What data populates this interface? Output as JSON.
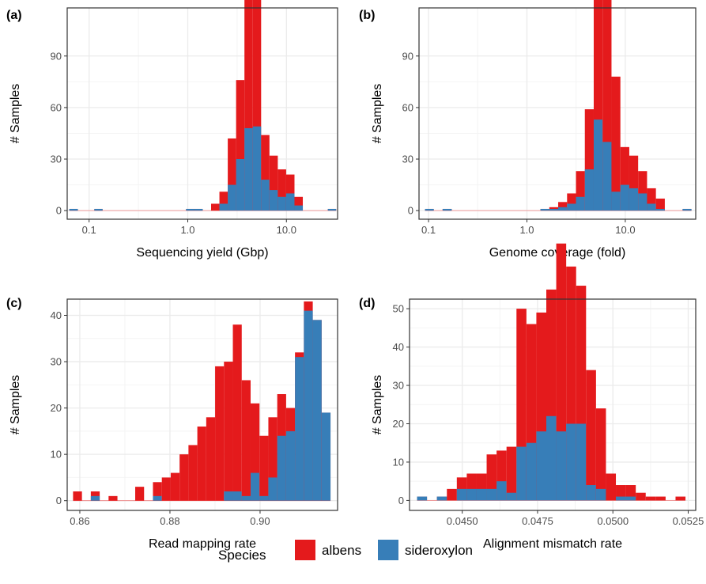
{
  "colors": {
    "albens": "#E41A1C",
    "sideroxylon": "#377EB8",
    "grid_major": "#EBEBEB",
    "grid_minor": "#F4F4F4",
    "zero_line": "#F08080"
  },
  "legend": {
    "title": "Species",
    "items": [
      {
        "name": "albens",
        "color": "#E41A1C"
      },
      {
        "name": "sideroxylon",
        "color": "#377EB8"
      }
    ]
  },
  "chart_data": [
    {
      "type": "bar",
      "tag": "(a)",
      "xlabel": "Sequencing yield (Gbp)",
      "ylabel": "# Samples",
      "x_scale": "log10",
      "xlim": [
        0.06,
        33
      ],
      "ylim": [
        -5,
        118
      ],
      "xticks": [
        {
          "v": 0.1,
          "label": "0.1"
        },
        {
          "v": 1.0,
          "label": "1.0"
        },
        {
          "v": 10.0,
          "label": "10.0"
        }
      ],
      "yticks": [
        {
          "v": 0,
          "label": "0"
        },
        {
          "v": 30,
          "label": "30"
        },
        {
          "v": 60,
          "label": "60"
        },
        {
          "v": 90,
          "label": "90"
        }
      ],
      "bins": [
        0.063,
        0.077,
        0.093,
        0.113,
        0.137,
        0.167,
        0.203,
        0.246,
        0.299,
        0.363,
        0.441,
        0.536,
        0.651,
        0.791,
        0.961,
        1.168,
        1.419,
        1.724,
        2.094,
        2.544,
        3.09,
        3.754,
        4.561,
        5.541,
        6.731,
        8.177,
        9.934,
        12.07,
        14.66,
        17.81,
        21.64,
        26.29,
        31.94
      ],
      "albens": [
        0,
        0,
        0,
        0,
        0,
        0,
        0,
        0,
        0,
        0,
        0,
        0,
        0,
        0,
        0,
        0,
        0,
        4,
        7,
        27,
        46,
        104,
        111,
        26,
        20,
        16,
        11,
        5,
        0,
        0,
        0,
        0
      ],
      "sideroxylon": [
        1,
        0,
        0,
        1,
        0,
        0,
        0,
        0,
        0,
        0,
        0,
        0,
        0,
        0,
        1,
        1,
        0,
        0,
        4,
        15,
        30,
        48,
        49,
        18,
        12,
        8,
        10,
        3,
        0,
        0,
        0,
        1
      ]
    },
    {
      "type": "bar",
      "tag": "(b)",
      "xlabel": "Genome coverage (fold)",
      "ylabel": "# Samples",
      "x_scale": "log10",
      "xlim": [
        0.08,
        52
      ],
      "ylim": [
        -5,
        118
      ],
      "xticks": [
        {
          "v": 0.1,
          "label": "0.1"
        },
        {
          "v": 1.0,
          "label": "1.0"
        },
        {
          "v": 10.0,
          "label": "10.0"
        }
      ],
      "yticks": [
        {
          "v": 0,
          "label": "0"
        },
        {
          "v": 30,
          "label": "30"
        },
        {
          "v": 60,
          "label": "60"
        },
        {
          "v": 90,
          "label": "90"
        }
      ],
      "bins": [
        0.092,
        0.113,
        0.139,
        0.172,
        0.211,
        0.26,
        0.32,
        0.394,
        0.485,
        0.597,
        0.735,
        0.905,
        1.114,
        1.372,
        1.689,
        2.079,
        2.56,
        3.152,
        3.88,
        4.777,
        5.882,
        7.241,
        8.916,
        10.98,
        13.51,
        16.64,
        20.48,
        25.22,
        31.05,
        38.23,
        47.06
      ],
      "albens": [
        0,
        0,
        0,
        0,
        0,
        0,
        0,
        0,
        0,
        0,
        0,
        0,
        0,
        0,
        1,
        3,
        6,
        15,
        35,
        72,
        117,
        67,
        22,
        19,
        13,
        9,
        6,
        0,
        0,
        0
      ],
      "sideroxylon": [
        1,
        0,
        1,
        0,
        0,
        0,
        0,
        0,
        0,
        0,
        0,
        0,
        0,
        1,
        1,
        2,
        4,
        8,
        24,
        53,
        40,
        11,
        15,
        13,
        10,
        4,
        1,
        0,
        0,
        1
      ]
    },
    {
      "type": "bar",
      "tag": "(c)",
      "xlabel": "Read mapping rate",
      "ylabel": "# Samples",
      "x_scale": "linear",
      "xlim": [
        0.8572,
        0.9172
      ],
      "ylim": [
        -2.1,
        43.5
      ],
      "xticks": [
        {
          "v": 0.86,
          "label": "0.86"
        },
        {
          "v": 0.88,
          "label": "0.88"
        },
        {
          "v": 0.9,
          "label": "0.90"
        }
      ],
      "yticks": [
        {
          "v": 0,
          "label": "0"
        },
        {
          "v": 10,
          "label": "10"
        },
        {
          "v": 20,
          "label": "20"
        },
        {
          "v": 30,
          "label": "30"
        },
        {
          "v": 40,
          "label": "40"
        }
      ],
      "bins": [
        0.8585,
        0.86047,
        0.86244,
        0.86441,
        0.86638,
        0.86835,
        0.87032,
        0.87229,
        0.87426,
        0.87623,
        0.8782,
        0.88017,
        0.88214,
        0.88411,
        0.88608,
        0.88805,
        0.89002,
        0.89199,
        0.89396,
        0.89593,
        0.8979,
        0.89987,
        0.90184,
        0.90381,
        0.90578,
        0.90775,
        0.90972,
        0.91169,
        0.91366,
        0.91563
      ],
      "albens": [
        2,
        0,
        1,
        0,
        1,
        0,
        0,
        3,
        0,
        3,
        5,
        6,
        10,
        12,
        16,
        18,
        29,
        28,
        36,
        25,
        15,
        13,
        13,
        9,
        5,
        1,
        2,
        0,
        0
      ],
      "sideroxylon": [
        0,
        0,
        1,
        0,
        0,
        0,
        0,
        0,
        0,
        1,
        0,
        0,
        0,
        0,
        0,
        0,
        0,
        2,
        2,
        1,
        6,
        1,
        5,
        14,
        15,
        31,
        41,
        39,
        19
      ]
    },
    {
      "type": "bar",
      "tag": "(d)",
      "xlabel": "Alignment mismatch rate",
      "ylabel": "# Samples",
      "x_scale": "linear",
      "xlim": [
        0.04325,
        0.05275
      ],
      "ylim": [
        -2.6,
        52.5
      ],
      "xticks": [
        {
          "v": 0.045,
          "label": "0.0450"
        },
        {
          "v": 0.0475,
          "label": "0.0475"
        },
        {
          "v": 0.05,
          "label": "0.0500"
        },
        {
          "v": 0.0525,
          "label": "0.0525"
        }
      ],
      "yticks": [
        {
          "v": 0,
          "label": "0"
        },
        {
          "v": 10,
          "label": "10"
        },
        {
          "v": 20,
          "label": "20"
        },
        {
          "v": 30,
          "label": "30"
        },
        {
          "v": 40,
          "label": "40"
        },
        {
          "v": 50,
          "label": "50"
        }
      ],
      "bins": [
        0.0435,
        0.04383,
        0.04416,
        0.04449,
        0.04482,
        0.04515,
        0.04548,
        0.04581,
        0.04614,
        0.04647,
        0.0468,
        0.04713,
        0.04746,
        0.04779,
        0.04812,
        0.04845,
        0.04878,
        0.04911,
        0.04944,
        0.04977,
        0.0501,
        0.05043,
        0.05076,
        0.05109,
        0.05142,
        0.05175,
        0.05208,
        0.05241
      ],
      "albens": [
        0,
        0,
        0,
        3,
        3,
        4,
        4,
        9,
        8,
        12,
        36,
        31,
        31,
        33,
        49,
        41,
        36,
        30,
        21,
        7,
        3,
        3,
        2,
        1,
        1,
        0,
        1
      ],
      "sideroxylon": [
        1,
        0,
        1,
        0,
        3,
        3,
        3,
        3,
        5,
        2,
        14,
        15,
        18,
        22,
        18,
        20,
        20,
        4,
        3,
        0,
        1,
        1,
        0,
        0,
        0,
        0,
        0
      ]
    }
  ]
}
